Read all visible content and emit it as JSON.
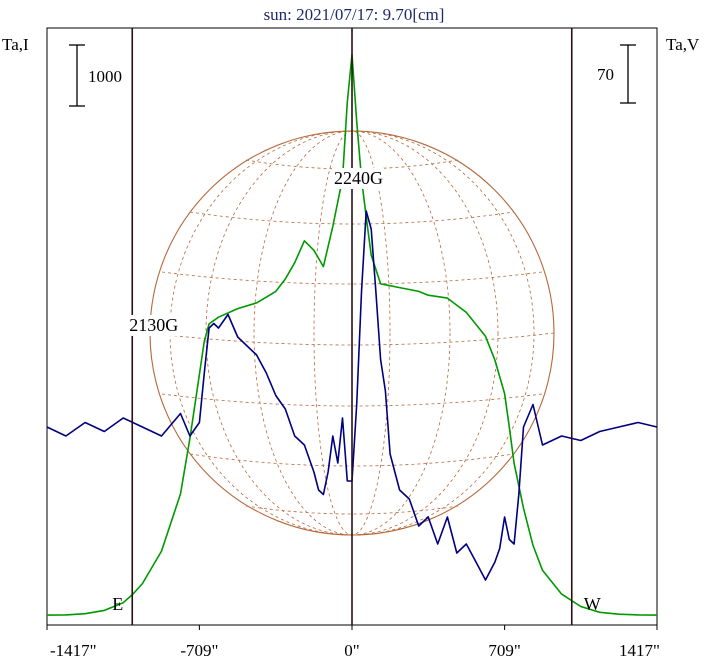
{
  "chart_data": {
    "type": "line",
    "title": "sun: 2021/07/17: 9.70[cm]",
    "left_axis_label": "Ta,I",
    "right_axis_label": "Ta,V",
    "left_scale_bar": "1000",
    "right_scale_bar": "70",
    "x_ticks": [
      {
        "value": -1417,
        "label": "-1417\""
      },
      {
        "value": -709,
        "label": "-709\""
      },
      {
        "value": 0,
        "label": "0\""
      },
      {
        "value": 709,
        "label": "709\""
      },
      {
        "value": 1417,
        "label": "1417\""
      }
    ],
    "xlim": [
      -1417,
      1417
    ],
    "limb_markers": [
      {
        "x": -709,
        "label": "E"
      },
      {
        "x": 709,
        "label": "W"
      }
    ],
    "annotations": [
      {
        "x": -709,
        "text": "2130G"
      },
      {
        "x": 0,
        "text": "2240G"
      }
    ],
    "series": [
      {
        "color": "#009900",
        "x": [
          -1417,
          -1329,
          -1240,
          -1151,
          -1063,
          -1018,
          -974,
          -885,
          -797,
          -753,
          -709,
          -686,
          -664,
          -620,
          -531,
          -443,
          -354,
          -310,
          -266,
          -221,
          -177,
          -133,
          -89,
          -44,
          -22,
          0,
          22,
          44,
          66,
          89,
          133,
          177,
          221,
          266,
          310,
          354,
          443,
          531,
          620,
          664,
          709,
          731,
          753,
          797,
          841,
          885,
          974,
          1063,
          1151,
          1240,
          1329,
          1417
        ],
        "values": [
          30,
          32,
          45,
          80,
          160,
          250,
          360,
          700,
          1300,
          1880,
          2550,
          2900,
          3080,
          3150,
          3240,
          3300,
          3420,
          3550,
          3720,
          3950,
          3850,
          3680,
          4100,
          4600,
          5400,
          5900,
          5200,
          4600,
          4200,
          3800,
          3500,
          3480,
          3460,
          3440,
          3420,
          3380,
          3350,
          3200,
          2950,
          2700,
          2350,
          2000,
          1620,
          1150,
          760,
          500,
          250,
          120,
          60,
          40,
          32,
          30
        ]
      },
      {
        "color": "#000080",
        "x": [
          -1417,
          -1329,
          -1240,
          -1151,
          -1063,
          -974,
          -885,
          -797,
          -753,
          -709,
          -686,
          -664,
          -642,
          -620,
          -576,
          -531,
          -443,
          -398,
          -354,
          -310,
          -266,
          -221,
          -177,
          -155,
          -133,
          -111,
          -89,
          -66,
          -44,
          -22,
          0,
          22,
          44,
          66,
          89,
          111,
          133,
          155,
          177,
          221,
          266,
          310,
          354,
          398,
          443,
          487,
          531,
          576,
          620,
          664,
          686,
          709,
          731,
          753,
          775,
          797,
          841,
          885,
          974,
          1063,
          1151,
          1240,
          1329,
          1417
        ],
        "values": [
          0,
          -2,
          1,
          -1,
          2,
          0,
          -2,
          3,
          -2,
          1,
          12,
          22,
          23,
          22,
          25,
          20,
          16,
          12,
          7,
          4,
          -2,
          -4,
          -10,
          -14,
          -15,
          -10,
          -2,
          -8,
          2,
          -12,
          -12,
          5,
          30,
          48,
          44,
          30,
          15,
          8,
          -6,
          -14,
          -16,
          -22,
          -20,
          -26,
          -20,
          -28,
          -26,
          -30,
          -34,
          -30,
          -27,
          -20,
          -25,
          -26,
          -15,
          0,
          5,
          -4,
          -2,
          -3,
          -1,
          0,
          1,
          0
        ]
      }
    ]
  }
}
